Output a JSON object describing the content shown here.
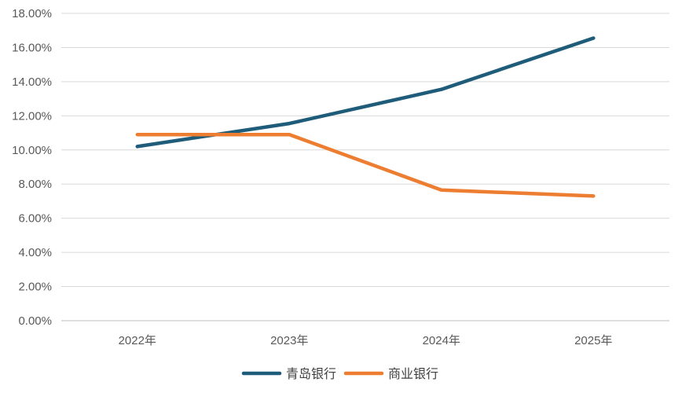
{
  "chart_data": {
    "type": "line",
    "categories": [
      "2022年",
      "2023年",
      "2024年",
      "2025年"
    ],
    "series": [
      {
        "name": "青岛银行",
        "values": [
          10.2,
          11.55,
          13.55,
          16.55
        ],
        "color": "#1f5c7a"
      },
      {
        "name": "商业银行",
        "values": [
          10.9,
          10.9,
          7.65,
          7.3
        ],
        "color": "#ed7d31"
      }
    ],
    "y_ticks": [
      "0.00%",
      "2.00%",
      "4.00%",
      "6.00%",
      "8.00%",
      "10.00%",
      "12.00%",
      "14.00%",
      "16.00%",
      "18.00%"
    ],
    "ylim": [
      0,
      18
    ],
    "y_step": 2,
    "grid": true,
    "legend_position": "bottom",
    "title": "",
    "xlabel": "",
    "ylabel": ""
  }
}
